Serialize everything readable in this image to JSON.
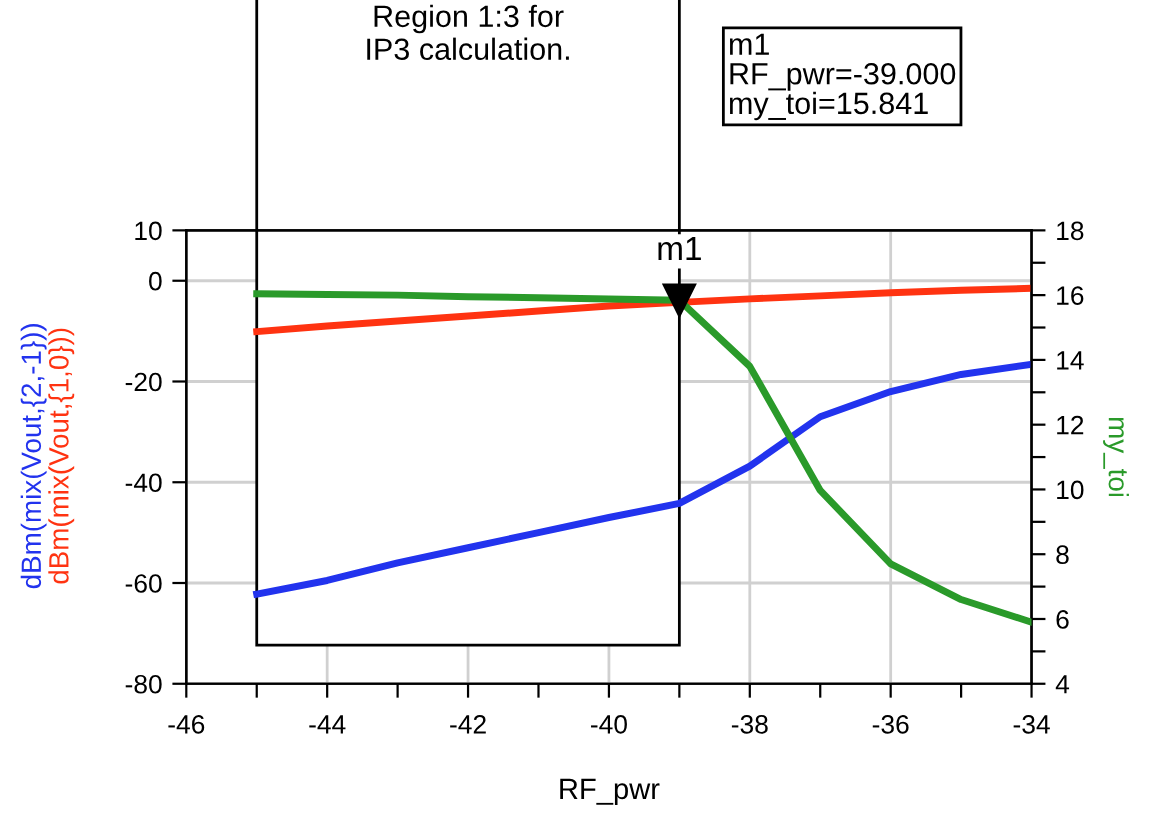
{
  "chart_data": {
    "type": "line",
    "xlabel": "RF_pwr",
    "y2label": "my_toi",
    "x": [
      -45,
      -44,
      -43,
      -42,
      -41,
      -40,
      -39,
      -38,
      -37,
      -36,
      -35,
      -34
    ],
    "series": [
      {
        "name": "dBm(mix(Vout,{2,-1}))",
        "color": "#2233ee",
        "values": [
          -62.2,
          -59.5,
          -56,
          -53,
          -50,
          -47,
          -44.2,
          -36.8,
          -27,
          -22,
          -18.6,
          -16.6
        ]
      },
      {
        "name": "dBm(mix(Vout,{1,0}))",
        "color": "#ff3311",
        "values": [
          -10.1,
          -9,
          -8,
          -7,
          -6,
          -5,
          -4.3,
          -3.6,
          -3,
          -2.4,
          -1.9,
          -1.5
        ]
      },
      {
        "color": "#2a9a2a",
        "axis": "y2",
        "values": [
          16.04,
          16.02,
          16.0,
          15.95,
          15.92,
          15.88,
          15.841,
          13.8,
          9.97,
          7.7,
          6.6,
          5.9
        ]
      }
    ],
    "xlim": [
      -46,
      -34
    ],
    "xticks": [
      -46,
      {
        "value": -45,
        "label": null
      },
      -44,
      {
        "value": -43,
        "label": null
      },
      -42,
      {
        "value": -41,
        "label": null
      },
      -40,
      {
        "value": -39,
        "label": null
      },
      -38,
      {
        "value": -37,
        "label": null
      },
      -36,
      {
        "value": -35,
        "label": null
      },
      -34
    ],
    "ylim": [
      -80,
      10
    ],
    "yticks": [
      10,
      0,
      -20,
      -40,
      -60,
      -80
    ],
    "y2lim": [
      4,
      18
    ],
    "y2ticks": [
      4,
      {
        "value": 5,
        "label": null
      },
      6,
      {
        "value": 7,
        "label": null
      },
      8,
      {
        "value": 9,
        "label": null
      },
      10,
      {
        "value": 11,
        "label": null
      },
      12,
      {
        "value": 13,
        "label": null
      },
      14,
      {
        "value": 15,
        "label": null
      },
      16,
      {
        "value": 17,
        "label": null
      },
      18
    ],
    "grid": true,
    "legend": false,
    "bands": [
      {
        "axis": "x",
        "from": -45,
        "to": -39,
        "label": "Region 1:3 for\nIP3 calculation.",
        "color": "#ffffff"
      }
    ],
    "annotations": [
      "m1",
      "m1\nRF_pwr=-39.000\nmy_toi=15.841"
    ]
  }
}
